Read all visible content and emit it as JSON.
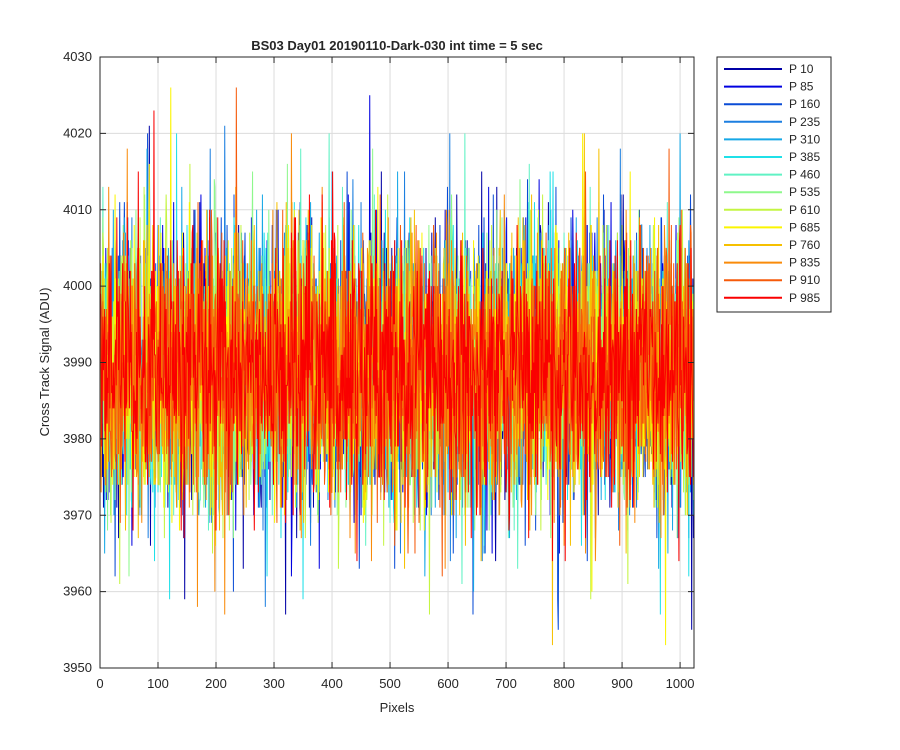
{
  "chart_data": {
    "type": "line",
    "title": "BS03 Day01 20190110-Dark-030 int time = 5 sec",
    "xlabel": "Pixels",
    "ylabel": "Cross Track Signal (ADU)",
    "xlim": [
      0,
      1024
    ],
    "ylim": [
      3950,
      4030
    ],
    "xticks": [
      0,
      100,
      200,
      300,
      400,
      500,
      600,
      700,
      800,
      900,
      1000
    ],
    "yticks": [
      3950,
      3960,
      3970,
      3980,
      3990,
      4000,
      4010,
      4020,
      4030
    ],
    "grid": true,
    "legend_position": "outside-top-right",
    "noise_profile": {
      "mean": 3989,
      "typical_range": [
        3972,
        4008
      ],
      "min_observed": 3953,
      "max_observed": 4026
    },
    "series": [
      {
        "name": "P 10",
        "color": "#0000a6",
        "spikes": [
          [
            85,
            4021
          ],
          [
            320,
            3957
          ],
          [
            1020,
            3955
          ]
        ]
      },
      {
        "name": "P 85",
        "color": "#0000e0",
        "spikes": [
          [
            465,
            4025
          ],
          [
            330,
            3962
          ]
        ]
      },
      {
        "name": "P 160",
        "color": "#0a4cd6",
        "spikes": [
          [
            230,
            3960
          ],
          [
            790,
            3955
          ]
        ]
      },
      {
        "name": "P 235",
        "color": "#1c7fe0",
        "spikes": [
          [
            215,
            4021
          ],
          [
            285,
            3958
          ]
        ]
      },
      {
        "name": "P 310",
        "color": "#16a8e6",
        "spikes": [
          [
            1000,
            4020
          ],
          [
            560,
            3962
          ]
        ]
      },
      {
        "name": "P 385",
        "color": "#1fe0e8",
        "spikes": [
          [
            350,
            3959
          ],
          [
            1015,
            3962
          ]
        ]
      },
      {
        "name": "P 460",
        "color": "#60f2c4",
        "spikes": [
          [
            395,
            4020
          ],
          [
            720,
            3963
          ]
        ]
      },
      {
        "name": "P 535",
        "color": "#8ef88c",
        "spikes": [
          [
            470,
            4018
          ],
          [
            50,
            3962
          ]
        ]
      },
      {
        "name": "P 610",
        "color": "#c4f542",
        "spikes": [
          [
            155,
            4016
          ],
          [
            910,
            3961
          ]
        ]
      },
      {
        "name": "P 685",
        "color": "#fbf500",
        "spikes": [
          [
            122,
            4026
          ],
          [
            975,
            3953
          ]
        ]
      },
      {
        "name": "P 760",
        "color": "#f6c000",
        "spikes": [
          [
            835,
            4020
          ],
          [
            780,
            3953
          ]
        ]
      },
      {
        "name": "P 835",
        "color": "#f98b0a",
        "spikes": [
          [
            330,
            4020
          ],
          [
            595,
            3963
          ]
        ]
      },
      {
        "name": "P 910",
        "color": "#f65a0a",
        "spikes": [
          [
            235,
            4026
          ],
          [
            590,
            3962
          ]
        ]
      },
      {
        "name": "P 985",
        "color": "#fa0000",
        "spikes": [
          [
            93,
            4023
          ],
          [
            140,
            3968
          ]
        ]
      }
    ]
  }
}
